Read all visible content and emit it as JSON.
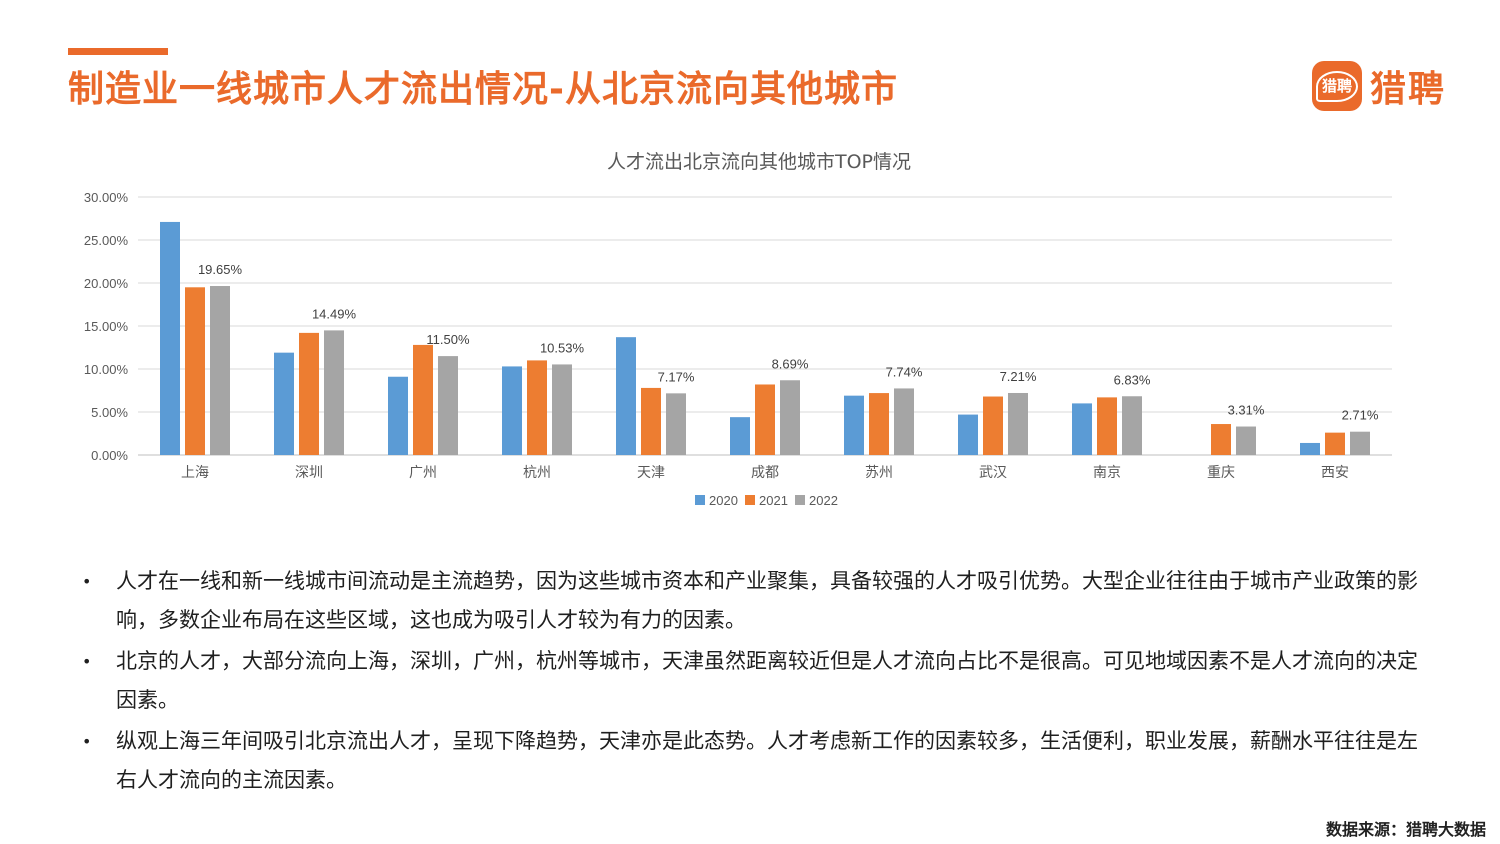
{
  "header": {
    "title": "制造业一线城市人才流出情况-从北京流向其他城市",
    "logo_mark": "猎聘",
    "logo_text": "猎聘"
  },
  "chart_data": {
    "type": "bar",
    "title": "人才流出北京流向其他城市TOP情况",
    "categories": [
      "上海",
      "深圳",
      "广州",
      "杭州",
      "天津",
      "成都",
      "苏州",
      "武汉",
      "南京",
      "重庆",
      "西安"
    ],
    "series": [
      {
        "name": "2020",
        "color": "#5b9bd5",
        "values": [
          27.1,
          11.9,
          9.1,
          10.3,
          13.7,
          4.4,
          6.9,
          4.7,
          6.0,
          null,
          1.4
        ]
      },
      {
        "name": "2021",
        "color": "#ed7d31",
        "values": [
          19.5,
          14.2,
          12.8,
          11.0,
          7.8,
          8.2,
          7.2,
          6.8,
          6.7,
          3.6,
          2.6
        ]
      },
      {
        "name": "2022",
        "color": "#a5a5a5",
        "values": [
          19.65,
          14.49,
          11.5,
          10.53,
          7.17,
          8.69,
          7.74,
          7.21,
          6.83,
          3.31,
          2.71
        ]
      }
    ],
    "data_labels": [
      "19.65%",
      "14.49%",
      "11.50%",
      "10.53%",
      "7.17%",
      "8.69%",
      "7.74%",
      "7.21%",
      "6.83%",
      "3.31%",
      "2.71%"
    ],
    "yticks": [
      "0.00%",
      "5.00%",
      "10.00%",
      "15.00%",
      "20.00%",
      "25.00%",
      "30.00%"
    ],
    "ylim": [
      0,
      30
    ],
    "grid": true,
    "legend_position": "bottom"
  },
  "bullets": [
    "人才在一线和新一线城市间流动是主流趋势，因为这些城市资本和产业聚集，具备较强的人才吸引优势。大型企业往往由于城市产业政策的影响，多数企业布局在这些区域，这也成为吸引人才较为有力的因素。",
    "北京的人才，大部分流向上海，深圳，广州，杭州等城市，天津虽然距离较近但是人才流向占比不是很高。可见地域因素不是人才流向的决定因素。",
    "纵观上海三年间吸引北京流出人才，呈现下降趋势，天津亦是此态势。人才考虑新工作的因素较多，生活便利，职业发展，薪酬水平往往是左右人才流向的主流因素。"
  ],
  "bullet_marker": "•",
  "source": "数据来源：猎聘大数据"
}
